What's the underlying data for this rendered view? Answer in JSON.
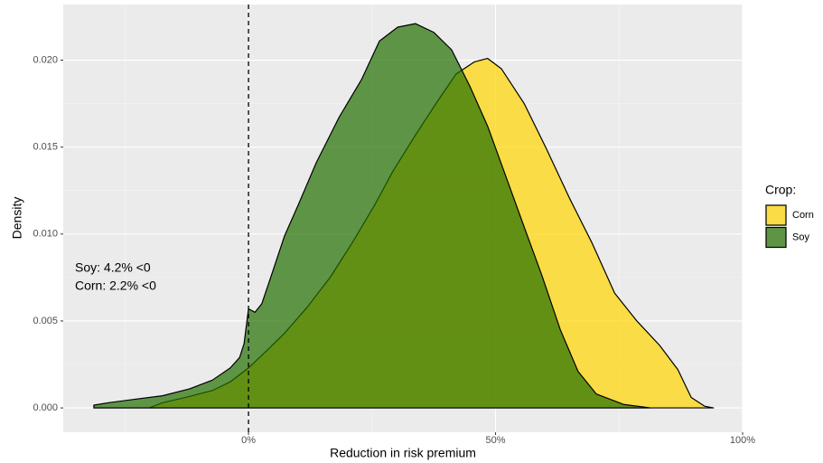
{
  "chart_data": {
    "type": "area",
    "x_label": "Reduction in risk premium",
    "y_label": "Density",
    "legend_title": "Crop:",
    "legend_position": "right",
    "grid": true,
    "xlim": [
      -37.5,
      100
    ],
    "ylim": [
      -0.0014,
      0.0232
    ],
    "xticks": [
      {
        "value": 0,
        "label": "0%"
      },
      {
        "value": 50,
        "label": "50%"
      },
      {
        "value": 100,
        "label": "100%"
      }
    ],
    "xminor": [
      -25,
      25,
      75
    ],
    "yticks": [
      {
        "value": 0,
        "label": "0.000"
      },
      {
        "value": 0.005,
        "label": "0.005"
      },
      {
        "value": 0.01,
        "label": "0.010"
      },
      {
        "value": 0.015,
        "label": "0.015"
      },
      {
        "value": 0.02,
        "label": "0.020"
      }
    ],
    "yminor": [
      0.0025,
      0.0075,
      0.0125,
      0.0175
    ],
    "vline": 0,
    "annotations": [
      "Soy: 4.2% <0",
      "Corn: 2.2% <0"
    ],
    "series": [
      {
        "name": "Corn",
        "color": "#ffd600",
        "x": [
          -31.3,
          -20.1,
          -17.4,
          -12.8,
          -7.3,
          -3.7,
          0,
          3.7,
          7.3,
          11.9,
          16.5,
          21,
          25.6,
          29.2,
          33.8,
          38.4,
          42,
          45.7,
          48.4,
          51.2,
          55.8,
          60.3,
          64.9,
          69.5,
          74.1,
          78.6,
          83.2,
          86.9,
          89.6,
          92.3,
          94.1
        ],
        "values": [
          0,
          0,
          0.0003,
          0.0006,
          0.001,
          0.0015,
          0.0023,
          0.0033,
          0.0043,
          0.0058,
          0.0075,
          0.0095,
          0.0117,
          0.0136,
          0.0157,
          0.0177,
          0.0192,
          0.0199,
          0.0201,
          0.0195,
          0.0175,
          0.0149,
          0.0121,
          0.0095,
          0.0066,
          0.005,
          0.0036,
          0.0022,
          0.0006,
          0.0001,
          0
        ]
      },
      {
        "name": "Soy",
        "color": "#226f00",
        "x": [
          -31.3,
          -28.3,
          -22.9,
          -17.4,
          -11.9,
          -7.3,
          -3.7,
          -1.8,
          -0.9,
          0,
          1.3,
          2.7,
          4.6,
          7.3,
          10.1,
          13.7,
          18.3,
          22.9,
          26.5,
          30.2,
          33.8,
          37.5,
          41.1,
          44.8,
          48.4,
          52.1,
          55.8,
          59.4,
          63.1,
          66.7,
          70.4,
          75.9,
          81.4
        ],
        "values": [
          0.00016,
          0.0003,
          0.0005,
          0.0007,
          0.0011,
          0.0016,
          0.0023,
          0.0029,
          0.0037,
          0.0057,
          0.0055,
          0.006,
          0.0076,
          0.0099,
          0.0117,
          0.0141,
          0.0167,
          0.0189,
          0.0211,
          0.0219,
          0.0221,
          0.0216,
          0.0206,
          0.0185,
          0.0162,
          0.0133,
          0.0104,
          0.0076,
          0.0045,
          0.0021,
          0.0008,
          0.0002,
          0
        ]
      }
    ]
  }
}
